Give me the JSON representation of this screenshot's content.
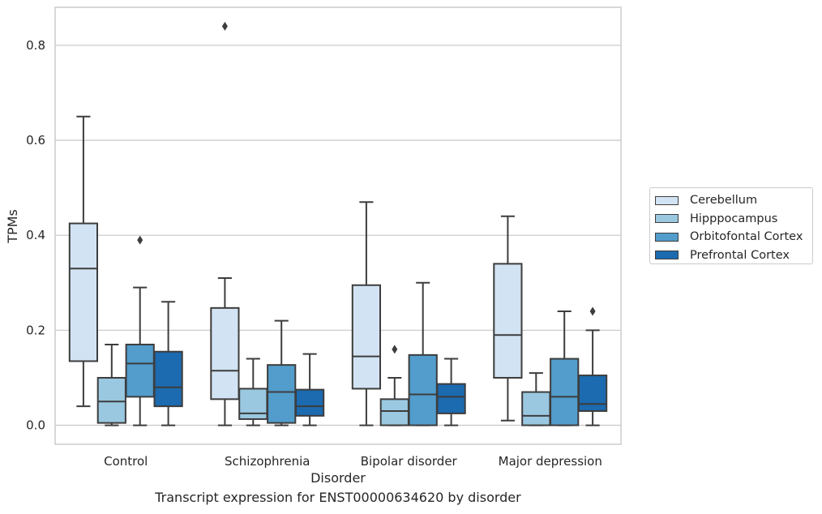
{
  "chart_data": {
    "type": "box",
    "xlabel": "Disorder",
    "ylabel": "TPMs",
    "caption": "Transcript expression for ENST00000634620 by disorder",
    "ylim": [
      -0.04,
      0.88
    ],
    "yticks": [
      0.0,
      0.2,
      0.4,
      0.6,
      0.8
    ],
    "ytick_labels": [
      "0.0",
      "0.2",
      "0.4",
      "0.6",
      "0.8"
    ],
    "grid": "horizontal",
    "legend_position": "right",
    "categories": [
      "Control",
      "Schizophrenia",
      "Bipolar disorder",
      "Major depression"
    ],
    "series": [
      {
        "name": "Cerebellum",
        "color": "#d2e3f3",
        "boxes": [
          {
            "whislo": 0.04,
            "q1": 0.135,
            "med": 0.33,
            "q3": 0.425,
            "whishi": 0.65,
            "fliers": []
          },
          {
            "whislo": 0.0,
            "q1": 0.055,
            "med": 0.115,
            "q3": 0.247,
            "whishi": 0.31,
            "fliers": [
              0.84
            ]
          },
          {
            "whislo": 0.0,
            "q1": 0.077,
            "med": 0.145,
            "q3": 0.295,
            "whishi": 0.47,
            "fliers": []
          },
          {
            "whislo": 0.01,
            "q1": 0.1,
            "med": 0.19,
            "q3": 0.34,
            "whishi": 0.44,
            "fliers": []
          }
        ]
      },
      {
        "name": "Hipppocampus",
        "color": "#9ac8e0",
        "boxes": [
          {
            "whislo": 0.0,
            "q1": 0.005,
            "med": 0.05,
            "q3": 0.1,
            "whishi": 0.17,
            "fliers": []
          },
          {
            "whislo": 0.0,
            "q1": 0.013,
            "med": 0.025,
            "q3": 0.077,
            "whishi": 0.14,
            "fliers": []
          },
          {
            "whislo": 0.0,
            "q1": 0.0,
            "med": 0.03,
            "q3": 0.055,
            "whishi": 0.1,
            "fliers": [
              0.16
            ]
          },
          {
            "whislo": 0.0,
            "q1": 0.0,
            "med": 0.02,
            "q3": 0.07,
            "whishi": 0.11,
            "fliers": []
          }
        ]
      },
      {
        "name": "Orbitofontal Cortex",
        "color": "#529dcc",
        "boxes": [
          {
            "whislo": 0.0,
            "q1": 0.06,
            "med": 0.13,
            "q3": 0.17,
            "whishi": 0.29,
            "fliers": [
              0.39
            ]
          },
          {
            "whislo": 0.0,
            "q1": 0.005,
            "med": 0.07,
            "q3": 0.127,
            "whishi": 0.22,
            "fliers": []
          },
          {
            "whislo": 0.0,
            "q1": 0.0,
            "med": 0.065,
            "q3": 0.148,
            "whishi": 0.3,
            "fliers": []
          },
          {
            "whislo": 0.0,
            "q1": 0.0,
            "med": 0.06,
            "q3": 0.14,
            "whishi": 0.24,
            "fliers": []
          }
        ]
      },
      {
        "name": "Prefrontal Cortex",
        "color": "#1c6aaf",
        "boxes": [
          {
            "whislo": 0.0,
            "q1": 0.04,
            "med": 0.08,
            "q3": 0.155,
            "whishi": 0.26,
            "fliers": []
          },
          {
            "whislo": 0.0,
            "q1": 0.02,
            "med": 0.04,
            "q3": 0.075,
            "whishi": 0.15,
            "fliers": []
          },
          {
            "whislo": 0.0,
            "q1": 0.025,
            "med": 0.06,
            "q3": 0.087,
            "whishi": 0.14,
            "fliers": []
          },
          {
            "whislo": 0.0,
            "q1": 0.03,
            "med": 0.045,
            "q3": 0.105,
            "whishi": 0.2,
            "fliers": [
              0.24
            ]
          }
        ]
      }
    ]
  }
}
